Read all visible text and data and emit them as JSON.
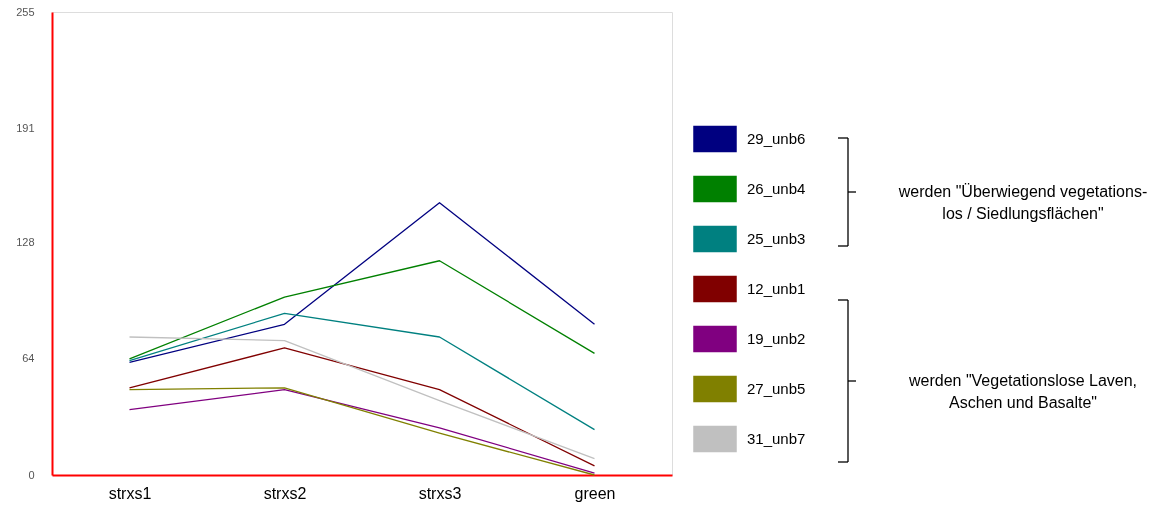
{
  "chart_data": {
    "type": "line",
    "categories": [
      "strxs1",
      "strxs2",
      "strxs3",
      "green"
    ],
    "ylim": [
      0,
      255
    ],
    "yticks": [
      0,
      64,
      128,
      191,
      255
    ],
    "grid": false,
    "legend": "right",
    "marker": "none",
    "line_style": "solid",
    "series": [
      {
        "name": "29_unb6",
        "color": "#000080",
        "values": [
          62,
          83,
          150,
          83
        ]
      },
      {
        "name": "26_unb4",
        "color": "#008000",
        "values": [
          64,
          98,
          118,
          67
        ]
      },
      {
        "name": "25_unb3",
        "color": "#008080",
        "values": [
          63,
          89,
          76,
          25
        ]
      },
      {
        "name": "12_unb1",
        "color": "#800000",
        "values": [
          48,
          70,
          47,
          5
        ]
      },
      {
        "name": "19_unb2",
        "color": "#800080",
        "values": [
          36,
          47,
          26,
          1
        ]
      },
      {
        "name": "27_unb5",
        "color": "#808000",
        "values": [
          47,
          48,
          23,
          0
        ]
      },
      {
        "name": "31_unb7",
        "color": "#c0c0c0",
        "values": [
          76,
          74,
          41,
          9
        ]
      }
    ],
    "annotations": [
      "werden \"Überwiegend vegetations-\nlos / Siedlungsflächen\"",
      "werden \"Vegetationslose Laven,\nAschen und Basalte\""
    ]
  }
}
